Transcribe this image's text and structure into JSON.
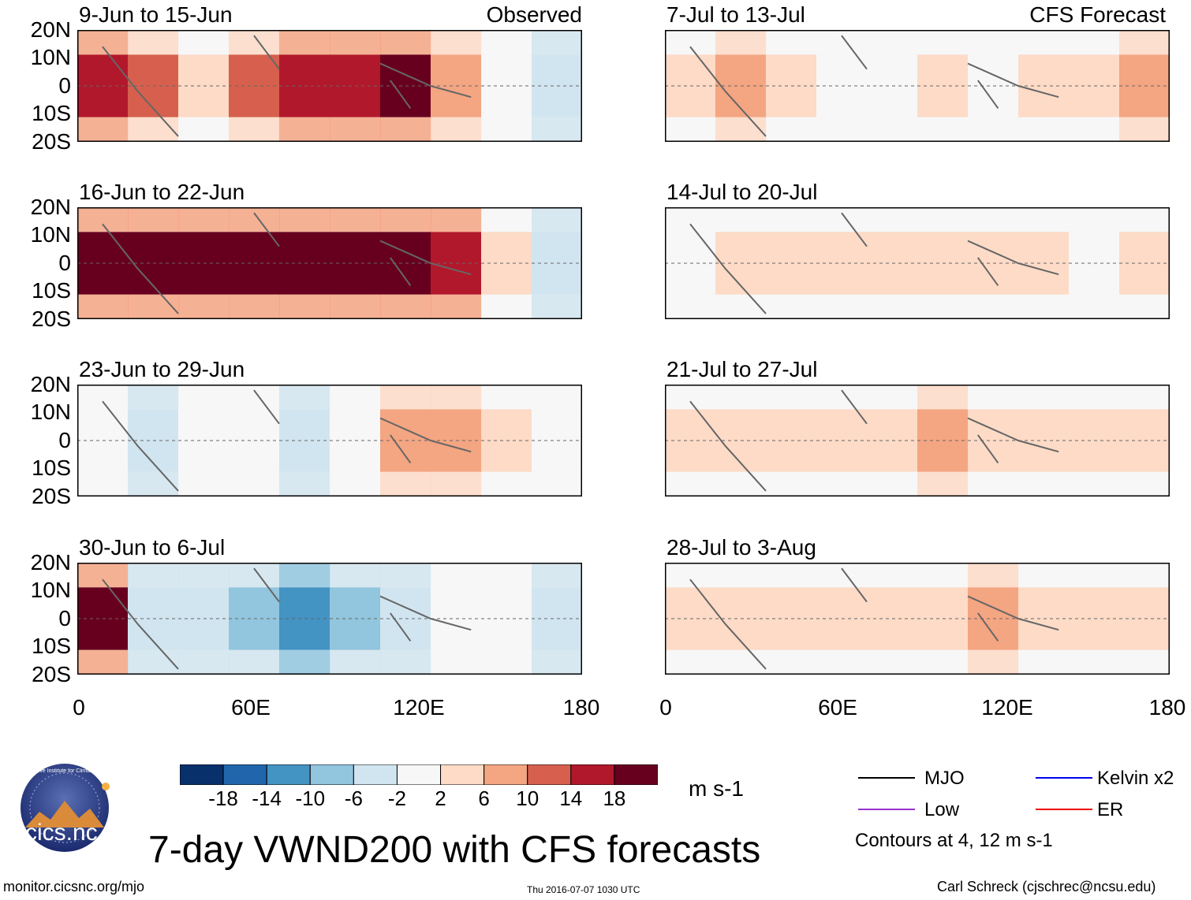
{
  "chart_data": {
    "type": "heatmap",
    "title": "7-day VWND200 with CFS forecasts",
    "variable": "VWND200",
    "units": "m s-1",
    "lat_ticks": [
      "20N",
      "10N",
      "0",
      "10S",
      "20S"
    ],
    "lon_ticks": [
      "0",
      "60E",
      "120E",
      "180"
    ],
    "lat_range": [
      -20,
      20
    ],
    "lon_range": [
      0,
      180
    ],
    "colorbar": {
      "levels": [
        "-18",
        "-14",
        "-10",
        "-6",
        "-2",
        "2",
        "6",
        "10",
        "14",
        "18"
      ],
      "colors": [
        "#08306b",
        "#2166ac",
        "#4393c3",
        "#92c5de",
        "#d1e5f0",
        "#f7f7f7",
        "#fddbc7",
        "#f4a582",
        "#d6604d",
        "#b2182b",
        "#67001f"
      ]
    },
    "panel_tags": {
      "observed": "Observed",
      "forecast": "CFS Forecast"
    },
    "observed_panels": [
      {
        "dates": "9-Jun to 15-Jun",
        "lon_centers": [
          0,
          20,
          40,
          60,
          80,
          100,
          120,
          140,
          160,
          180
        ],
        "anomaly_10S_10N": [
          14,
          10,
          2,
          10,
          14,
          16,
          18,
          6,
          -2,
          -6
        ]
      },
      {
        "dates": "16-Jun to 22-Jun",
        "lon_centers": [
          0,
          20,
          40,
          60,
          80,
          100,
          120,
          140,
          160,
          180
        ],
        "anomaly_10S_10N": [
          18,
          18,
          18,
          18,
          18,
          18,
          18,
          14,
          2,
          -6
        ]
      },
      {
        "dates": "23-Jun to 29-Jun",
        "lon_centers": [
          0,
          20,
          40,
          60,
          80,
          100,
          120,
          140,
          160,
          180
        ],
        "anomaly_10S_10N": [
          -2,
          -6,
          -2,
          -2,
          -6,
          -2,
          6,
          6,
          2,
          -2
        ]
      },
      {
        "dates": "30-Jun to 6-Jul",
        "lon_centers": [
          0,
          20,
          40,
          60,
          80,
          100,
          120,
          140,
          160,
          180
        ],
        "anomaly_10S_10N": [
          18,
          -6,
          -6,
          -10,
          -14,
          -10,
          -6,
          -2,
          -2,
          -6
        ]
      }
    ],
    "forecast_panels": [
      {
        "dates": "7-Jul to 13-Jul",
        "lon_centers": [
          0,
          20,
          40,
          60,
          80,
          100,
          120,
          140,
          160,
          180
        ],
        "anomaly_10S_10N": [
          2,
          6,
          2,
          -2,
          -2,
          2,
          -2,
          2,
          2,
          6
        ]
      },
      {
        "dates": "14-Jul to 20-Jul",
        "lon_centers": [
          0,
          20,
          40,
          60,
          80,
          100,
          120,
          140,
          160,
          180
        ],
        "anomaly_10S_10N": [
          -2,
          2,
          2,
          2,
          2,
          2,
          2,
          2,
          -2,
          2
        ]
      },
      {
        "dates": "21-Jul to 27-Jul",
        "lon_centers": [
          0,
          20,
          40,
          60,
          80,
          100,
          120,
          140,
          160,
          180
        ],
        "anomaly_10S_10N": [
          2,
          2,
          2,
          2,
          2,
          6,
          2,
          2,
          2,
          2
        ]
      },
      {
        "dates": "28-Jul to 3-Aug",
        "lon_centers": [
          0,
          20,
          40,
          60,
          80,
          100,
          120,
          140,
          160,
          180
        ],
        "anomaly_10S_10N": [
          2,
          2,
          2,
          2,
          2,
          2,
          6,
          2,
          2,
          2
        ]
      }
    ],
    "legend": {
      "entries": [
        {
          "label": "MJO",
          "color": "#000000"
        },
        {
          "label": "Kelvin x2",
          "color": "#0000ee"
        },
        {
          "label": "Low",
          "color": "#9932cc"
        },
        {
          "label": "ER",
          "color": "#ee0000"
        }
      ],
      "note": "Contours at 4, 12 m s-1"
    }
  },
  "logo": {
    "text": "cics.nc",
    "ring_text": "Cooperative Institute for Climate and Satellites"
  },
  "footer": {
    "url": "monitor.cicsnc.org/mjo",
    "timestamp": "Thu 2016-07-07 1030 UTC",
    "author": "Carl Schreck (cjschrec@ncsu.edu)"
  }
}
